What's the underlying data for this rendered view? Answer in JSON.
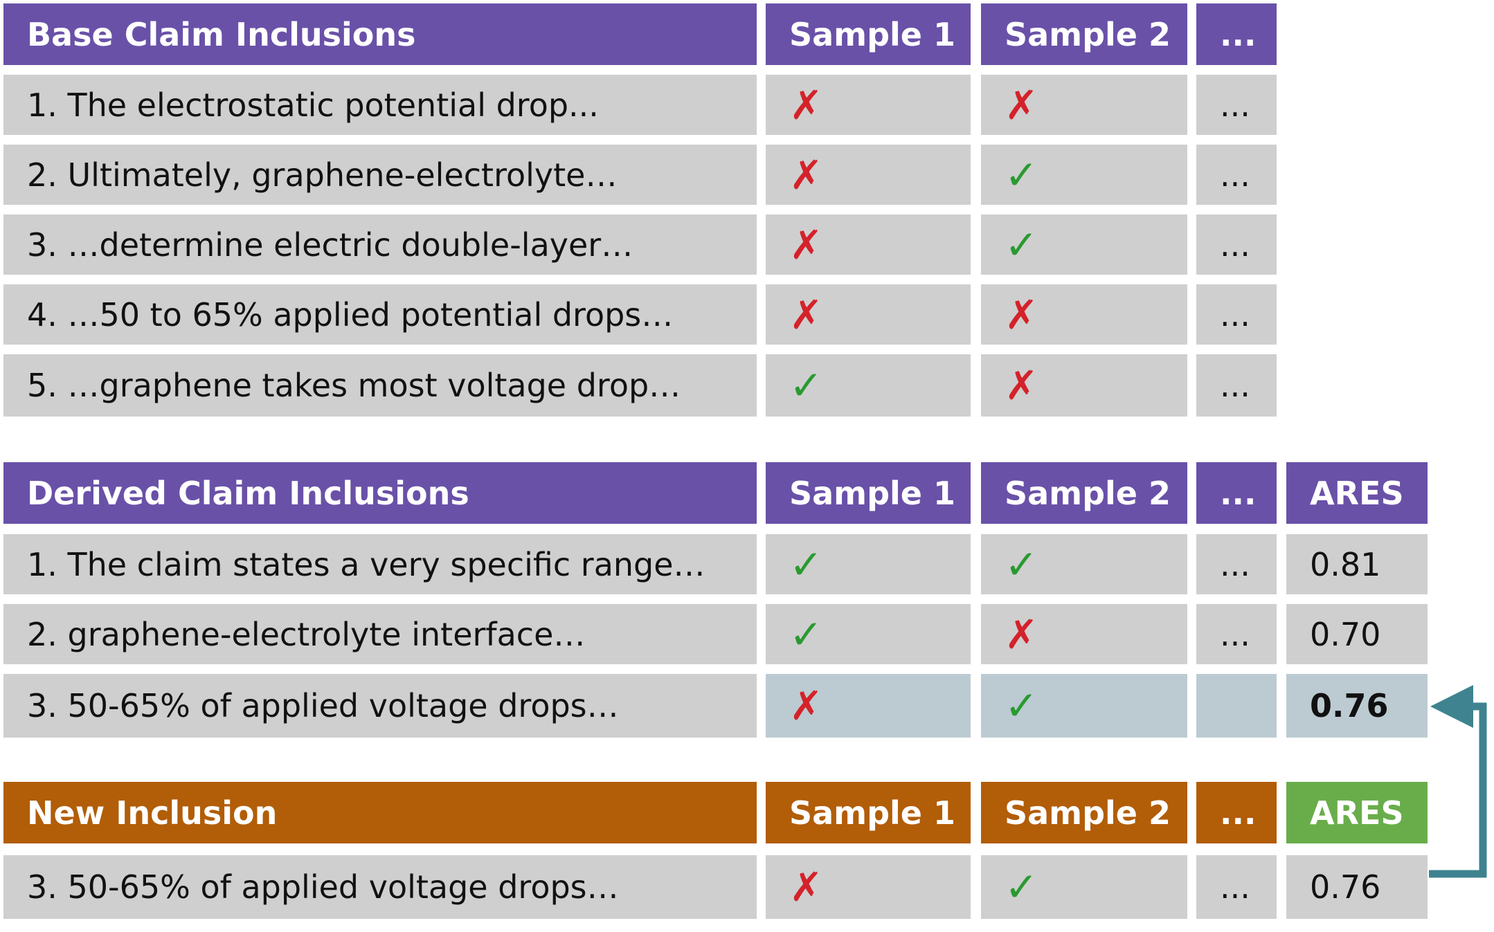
{
  "colors": {
    "header_purple": "#6951a8",
    "header_orange": "#b25d08",
    "header_green": "#69ad4b",
    "row_gray": "#cfcfcf",
    "row_highlight": "#bccbd1",
    "cross": "#d4222a",
    "check": "#2a9a30",
    "arrow": "#3f8390"
  },
  "glyphs": {
    "check": "✓",
    "cross": "✗"
  },
  "base": {
    "title": "Base Claim Inclusions",
    "sample1": "Sample 1",
    "sample2": "Sample 2",
    "more": "...",
    "rows": [
      {
        "text": "1. The electrostatic potential drop...",
        "s1": "✗",
        "s2": "✗",
        "more": "..."
      },
      {
        "text": "2. Ultimately, graphene-electrolyte…",
        "s1": "✗",
        "s2": "✓",
        "more": "..."
      },
      {
        "text": "3. …determine electric double-layer…",
        "s1": "✗",
        "s2": "✓",
        "more": "..."
      },
      {
        "text": "4. …50 to 65% applied potential drops…",
        "s1": "✗",
        "s2": "✗",
        "more": "..."
      },
      {
        "text": "5. …graphene takes most voltage drop…",
        "s1": "✓",
        "s2": "✗",
        "more": "..."
      }
    ]
  },
  "derived": {
    "title": "Derived Claim Inclusions",
    "sample1": "Sample 1",
    "sample2": "Sample 2",
    "more": "...",
    "ares": "ARES",
    "rows": [
      {
        "text": "1. The claim states a very specific range…",
        "s1": "✓",
        "s2": "✓",
        "more": "...",
        "ares": "0.81"
      },
      {
        "text": "2. graphene-electrolyte interface…",
        "s1": "✓",
        "s2": "✗",
        "more": "...",
        "ares": "0.70"
      },
      {
        "text": "3. 50-65% of applied voltage drops…",
        "s1": "✗",
        "s2": "✓",
        "more": "",
        "ares": "0.76"
      }
    ]
  },
  "new_inclusion": {
    "title": "New Inclusion",
    "sample1": "Sample 1",
    "sample2": "Sample 2",
    "more": "...",
    "ares": "ARES",
    "rows": [
      {
        "text": "3. 50-65% of applied voltage drops…",
        "s1": "✗",
        "s2": "✓",
        "more": "...",
        "ares": "0.76"
      }
    ]
  }
}
